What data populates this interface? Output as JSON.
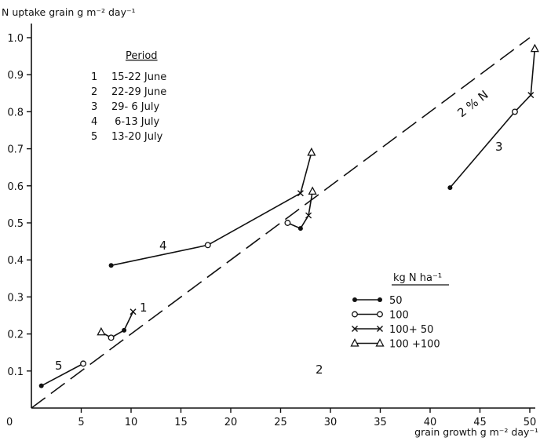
{
  "chart_data": {
    "type": "scatter",
    "ylabel": "N uptake grain g m⁻² day⁻¹",
    "xlabel": "grain growth g m⁻² day⁻¹",
    "xlim": [
      0,
      51
    ],
    "ylim": [
      0,
      1.03
    ],
    "x_ticks": [
      "0",
      "5",
      "10",
      "15",
      "20",
      "25",
      "30",
      "35",
      "40",
      "45",
      "50"
    ],
    "y_ticks": [
      "0.1",
      "0.2",
      "0.3",
      "0.4",
      "0.5",
      "0.6",
      "0.7",
      "0.8",
      "0.9",
      "1.0"
    ],
    "reference_line": {
      "label": "2 % N",
      "x": [
        0,
        50
      ],
      "y": [
        0,
        1.0
      ],
      "style": "dashed"
    },
    "period_table": {
      "title": "Period",
      "rows": [
        {
          "num": "1",
          "dates": "15-22 June"
        },
        {
          "num": "2",
          "dates": "22-29 June"
        },
        {
          "num": "3",
          "dates": "29- 6 July"
        },
        {
          "num": "4",
          "dates": " 6-13 July"
        },
        {
          "num": "5",
          "dates": "13-20 July"
        }
      ]
    },
    "legend": {
      "title": "kg N ha⁻¹",
      "entries": [
        {
          "marker": "dot",
          "label": "50"
        },
        {
          "marker": "circle",
          "label": "100"
        },
        {
          "marker": "cross",
          "label": "100+ 50"
        },
        {
          "marker": "triangle",
          "label": "100 +100"
        }
      ]
    },
    "series": [
      {
        "name": "50",
        "marker": "dot",
        "points": {
          "1": [
            9.3,
            0.21
          ],
          "2": [
            27.0,
            0.485
          ],
          "3": [
            42.0,
            0.595
          ],
          "4": [
            8.0,
            0.385
          ],
          "5": [
            1.0,
            0.06
          ]
        }
      },
      {
        "name": "100",
        "marker": "circle",
        "points": {
          "1": [
            8.0,
            0.19
          ],
          "2": [
            25.7,
            0.5
          ],
          "3": [
            48.5,
            0.8
          ],
          "4": [
            17.7,
            0.44
          ],
          "5": [
            5.2,
            0.12
          ]
        }
      },
      {
        "name": "100+ 50",
        "marker": "cross",
        "points": {
          "1": [
            10.2,
            0.26
          ],
          "2": [
            27.8,
            0.52
          ],
          "3": [
            50.1,
            0.845
          ],
          "4": [
            27.0,
            0.58
          ]
        }
      },
      {
        "name": "100 +100",
        "marker": "triangle",
        "points": {
          "1": [
            7.0,
            0.205
          ],
          "2": [
            28.2,
            0.585
          ],
          "3": [
            50.5,
            0.97
          ],
          "4": [
            28.1,
            0.69
          ]
        }
      }
    ],
    "period_curves": [
      {
        "label": "1",
        "order": [
          "50",
          "100",
          "100+ 50",
          "100 +100"
        ],
        "path_order": [
          [
            "100 +100",
            "100"
          ],
          [
            "100",
            "50"
          ],
          [
            "50",
            "100+ 50"
          ]
        ]
      },
      {
        "label": "2",
        "path_order": [
          [
            "100",
            "50"
          ],
          [
            "50",
            "100+ 50"
          ],
          [
            "100+ 50",
            "100 +100"
          ]
        ]
      },
      {
        "label": "3",
        "path_order": [
          [
            "50",
            "100"
          ],
          [
            "100",
            "100+ 50"
          ],
          [
            "100+ 50",
            "100 +100"
          ]
        ]
      },
      {
        "label": "4",
        "path_order": [
          [
            "50",
            "100"
          ],
          [
            "100",
            "100+ 50"
          ],
          [
            "100+ 50",
            "100 +100"
          ]
        ]
      },
      {
        "label": "5",
        "path_order": [
          [
            "50",
            "100"
          ]
        ]
      }
    ]
  }
}
